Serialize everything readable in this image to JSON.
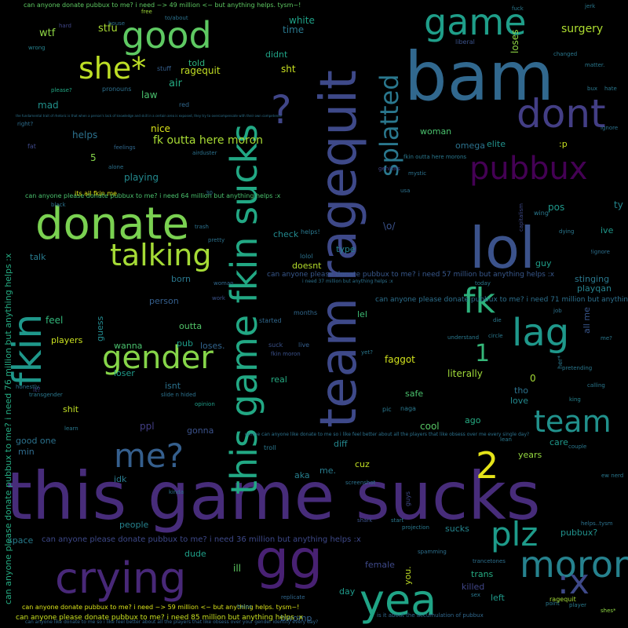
{
  "words": [
    {
      "id": "w1",
      "text": "this game sucks",
      "color": "#472c7a"
    },
    {
      "id": "w2",
      "text": "bam",
      "color": "#31688e"
    },
    {
      "id": "w3",
      "text": "lol",
      "color": "#3b528b"
    },
    {
      "id": "w4",
      "text": "donate",
      "color": "#7ad151"
    },
    {
      "id": "w5",
      "text": "team ragequit",
      "color": "#3e4989"
    },
    {
      "id": "w6",
      "text": "this game fkin sucks",
      "color": "#22a884"
    },
    {
      "id": "w7",
      "text": "good",
      "color": "#5ec962"
    },
    {
      "id": "w8",
      "text": "dont",
      "color": "#433e85"
    },
    {
      "id": "w9",
      "text": "game",
      "color": "#1f9e89"
    },
    {
      "id": "w10",
      "text": "pubbux",
      "color": "#440154"
    },
    {
      "id": "w11",
      "text": "talking",
      "color": "#a5db36"
    },
    {
      "id": "w12",
      "text": "gender",
      "color": "#86d549"
    },
    {
      "id": "w13",
      "text": "crying",
      "color": "#482878"
    },
    {
      "id": "w14",
      "text": "gg",
      "color": "#482173"
    },
    {
      "id": "w15",
      "text": "yea",
      "color": "#20a486"
    },
    {
      "id": "w16",
      "text": "moron",
      "color": "#26828e"
    },
    {
      "id": "w17",
      "text": "splatted",
      "color": "#2a788e"
    },
    {
      "id": "w18",
      "text": "fkin",
      "color": "#1f988b"
    },
    {
      "id": "w19",
      "text": "she*",
      "color": "#bddf26"
    },
    {
      "id": "w20",
      "text": "lag",
      "color": "#1f988b"
    },
    {
      "id": "w21",
      "text": "team",
      "color": "#21918c"
    },
    {
      "id": "w22",
      "text": "plz",
      "color": "#1e9b8a"
    },
    {
      "id": "w23",
      "text": "fk",
      "color": "#2db27d"
    },
    {
      "id": "w24",
      "text": "me?",
      "color": "#355f8d"
    },
    {
      "id": "w25",
      "text": "2",
      "color": "#e5e419"
    },
    {
      "id": "w26",
      "text": ":x",
      "color": "#3e4989"
    },
    {
      "id": "w27",
      "text": "?",
      "color": "#404688"
    },
    {
      "id": "w28",
      "text": "1",
      "color": "#35b779"
    },
    {
      "id": "w29",
      "text": "ragequit",
      "color": "#c2df23"
    },
    {
      "id": "w30",
      "text": "surgery",
      "color": "#addc30"
    },
    {
      "id": "w31",
      "text": "loses",
      "color": "#8fd744"
    },
    {
      "id": "w32",
      "text": "wtf",
      "color": "#8fd744"
    },
    {
      "id": "w33",
      "text": "stfu",
      "color": "#a8db34"
    },
    {
      "id": "w34",
      "text": "white",
      "color": "#1fa187"
    },
    {
      "id": "w35",
      "text": "time",
      "color": "#2a788e"
    },
    {
      "id": "w36",
      "text": "didnt",
      "color": "#20a386"
    },
    {
      "id": "w37",
      "text": "told",
      "color": "#2db27d"
    },
    {
      "id": "w38",
      "text": "air",
      "color": "#25ab82"
    },
    {
      "id": "w39",
      "text": "law",
      "color": "#4ac16d"
    },
    {
      "id": "w40",
      "text": "mad",
      "color": "#21918c"
    },
    {
      "id": "w41",
      "text": "sht",
      "color": "#c8e020"
    },
    {
      "id": "w42",
      "text": "nice",
      "color": "#dae319"
    },
    {
      "id": "w43",
      "text": "helps",
      "color": "#2c728e"
    },
    {
      "id": "w44",
      "text": "fk outta here moron",
      "color": "#a8db34"
    },
    {
      "id": "w45",
      "text": "woman",
      "color": "#4ac16d"
    },
    {
      "id": "w46",
      "text": "omega",
      "color": "#2c728e"
    },
    {
      "id": "w47",
      "text": "elite",
      "color": "#21918c"
    },
    {
      "id": "w48",
      "text": ":p",
      "color": "#c8e020"
    },
    {
      "id": "w49",
      "text": "playing",
      "color": "#23898e"
    },
    {
      "id": "w50",
      "text": "5",
      "color": "#84d44b"
    },
    {
      "id": "w51",
      "text": "check",
      "color": "#23898e"
    },
    {
      "id": "w52",
      "text": "\\o/",
      "color": "#3b528b"
    },
    {
      "id": "w53",
      "text": "pos",
      "color": "#1f988b"
    },
    {
      "id": "w54",
      "text": "ive",
      "color": "#1f988b"
    },
    {
      "id": "w55",
      "text": "ty",
      "color": "#24868e"
    },
    {
      "id": "w56",
      "text": "talk",
      "color": "#297b8e"
    },
    {
      "id": "w57",
      "text": "born",
      "color": "#2a788e"
    },
    {
      "id": "w58",
      "text": "doesnt",
      "color": "#b5de2b"
    },
    {
      "id": "w59",
      "text": "type",
      "color": "#25848e"
    },
    {
      "id": "w60",
      "text": "guy",
      "color": "#1f9e89"
    },
    {
      "id": "w61",
      "text": "stinging",
      "color": "#2a788e"
    },
    {
      "id": "w62",
      "text": "playqan",
      "color": "#26828e"
    },
    {
      "id": "w63",
      "text": "person",
      "color": "#355f8d"
    },
    {
      "id": "w64",
      "text": "feel",
      "color": "#32b67a"
    },
    {
      "id": "w65",
      "text": "outta",
      "color": "#52c569"
    },
    {
      "id": "w66",
      "text": "lel",
      "color": "#3dbc74"
    },
    {
      "id": "w67",
      "text": "players",
      "color": "#cae11f"
    },
    {
      "id": "w68",
      "text": "pub",
      "color": "#1e9c89"
    },
    {
      "id": "w69",
      "text": "loses.",
      "color": "#32648e"
    },
    {
      "id": "w70",
      "text": "wanna",
      "color": "#4ac16d"
    },
    {
      "id": "w71",
      "text": "loser",
      "color": "#1f9a8a"
    },
    {
      "id": "w72",
      "text": "isnt",
      "color": "#2c728e"
    },
    {
      "id": "w73",
      "text": "real",
      "color": "#25ab82"
    },
    {
      "id": "w74",
      "text": "faggot",
      "color": "#d0e11c"
    },
    {
      "id": "w75",
      "text": "literally",
      "color": "#a0da39"
    },
    {
      "id": "w76",
      "text": "tho",
      "color": "#2c728e"
    },
    {
      "id": "w77",
      "text": "love",
      "color": "#23898e"
    },
    {
      "id": "w78",
      "text": "safe",
      "color": "#4ac16d"
    },
    {
      "id": "w79",
      "text": "cool",
      "color": "#58c765"
    },
    {
      "id": "w80",
      "text": "ago",
      "color": "#25ab82"
    },
    {
      "id": "w81",
      "text": "care",
      "color": "#1f988b"
    },
    {
      "id": "w82",
      "text": "years",
      "color": "#95d840"
    },
    {
      "id": "w83",
      "text": "shit",
      "color": "#c0df25"
    },
    {
      "id": "w84",
      "text": "ppl",
      "color": "#433e85"
    },
    {
      "id": "w85",
      "text": "gonna",
      "color": "#3b528b"
    },
    {
      "id": "w86",
      "text": "good one",
      "color": "#2c728e"
    },
    {
      "id": "w87",
      "text": "min",
      "color": "#2f6c8e"
    },
    {
      "id": "w88",
      "text": "diff",
      "color": "#24878e"
    },
    {
      "id": "w89",
      "text": "aka",
      "color": "#277f8e"
    },
    {
      "id": "w90",
      "text": "me.",
      "color": "#287c8e"
    },
    {
      "id": "w91",
      "text": "cuz",
      "color": "#c2df23"
    },
    {
      "id": "w92",
      "text": "idk",
      "color": "#297b8e"
    },
    {
      "id": "w93",
      "text": "people",
      "color": "#26828e"
    },
    {
      "id": "w94",
      "text": "sucks",
      "color": "#25858e"
    },
    {
      "id": "w95",
      "text": "pubbux?",
      "color": "#21918c"
    },
    {
      "id": "w96",
      "text": "dude",
      "color": "#1fa088"
    },
    {
      "id": "w97",
      "text": "ill",
      "color": "#5ec962"
    },
    {
      "id": "w98",
      "text": "female",
      "color": "#3e4989"
    },
    {
      "id": "w99",
      "text": "trans",
      "color": "#25ab82"
    },
    {
      "id": "w100",
      "text": "killed",
      "color": "#404688"
    },
    {
      "id": "w101",
      "text": "day",
      "color": "#1f9a8a"
    },
    {
      "id": "w102",
      "text": "left",
      "color": "#1f9a8a"
    },
    {
      "id": "w103",
      "text": "bwomp",
      "color": "#34618d"
    },
    {
      "id": "w104",
      "text": "space",
      "color": "#287c8e"
    },
    {
      "id": "w105",
      "text": "you.",
      "color": "#c0df25"
    },
    {
      "id": "w106",
      "text": "can anyone please donate pubbux to me?  i need 36 million but anything helps :x",
      "color": "#3e4989"
    },
    {
      "id": "w107",
      "text": "can anyone please donate pubbux to me?  i need 76 million but anything helps :x",
      "color": "#25ab82"
    },
    {
      "id": "w108",
      "text": "can anyone please donate pubbux to me?  i need 71 million but anything helps :x",
      "color": "#2d708e"
    },
    {
      "id": "w109",
      "text": "can anyone please donate pubbux to me?  i need 57 million but anything helps :x",
      "color": "#38588c"
    },
    {
      "id": "w110",
      "text": "can anyone please donate pubbux to me?  i need 85 million but anything helps :x",
      "color": "#c8e020"
    },
    {
      "id": "w111",
      "text": "can anyone donate pubbux to me?  i need ~> 59 million <~ but anything helps.  tysm~!",
      "color": "#dae319"
    },
    {
      "id": "w112",
      "text": "can anyone donate pubbux to me?  i need ~> 49 million <~ but anything helps.  tysm~!",
      "color": "#5ec962"
    },
    {
      "id": "w113",
      "text": "can anyone please donate pubbux to me?  i need 64 million but anything helps :x",
      "color": "#4ac16d"
    },
    {
      "id": "w114",
      "text": "all me",
      "color": "#39568c"
    },
    {
      "id": "w115",
      "text": "guess",
      "color": "#23898e"
    },
    {
      "id": "w116",
      "text": "ragequit",
      "color": "#a5db36"
    },
    {
      "id": "w117",
      "text": "0",
      "color": "#a5db36"
    },
    {
      "id": "w118",
      "text": "pronouns",
      "color": "#2d708e"
    },
    {
      "id": "w119",
      "text": "stuff",
      "color": "#355f8d"
    },
    {
      "id": "w120",
      "text": "red",
      "color": "#31688e"
    },
    {
      "id": "w121",
      "text": "house",
      "color": "#2d708e"
    },
    {
      "id": "w122",
      "text": "to/about",
      "color": "#2c728e"
    },
    {
      "id": "w123",
      "text": "free",
      "color": "#a0da39"
    },
    {
      "id": "w124",
      "text": "fuck",
      "color": "#2a788e"
    },
    {
      "id": "w125",
      "text": "liberal",
      "color": "#3b528b"
    },
    {
      "id": "w126",
      "text": "hard",
      "color": "#404688"
    },
    {
      "id": "w127",
      "text": "wrong",
      "color": "#26828e"
    },
    {
      "id": "w128",
      "text": "please?",
      "color": "#22a884"
    },
    {
      "id": "w129",
      "text": "right?",
      "color": "#2e6e8e"
    },
    {
      "id": "w130",
      "text": "fat",
      "color": "#3e4989"
    },
    {
      "id": "w131",
      "text": "feelings",
      "color": "#31688e"
    },
    {
      "id": "w132",
      "text": "airduster",
      "color": "#2c728e"
    },
    {
      "id": "w133",
      "text": "opinion",
      "color": "#1f9e89"
    },
    {
      "id": "w134",
      "text": "me?",
      "color": "#2a788e"
    },
    {
      "id": "w135",
      "text": "job",
      "color": "#2c728e"
    },
    {
      "id": "w136",
      "text": "king",
      "color": "#26828e"
    },
    {
      "id": "w137",
      "text": "it?",
      "color": "#433e85"
    },
    {
      "id": "w138",
      "text": "slide n hided",
      "color": "#2c728e"
    },
    {
      "id": "w139",
      "text": "genitals",
      "color": "#414487"
    },
    {
      "id": "w140",
      "text": "helps..tysm",
      "color": "#2c728e"
    },
    {
      "id": "w141",
      "text": "shes*",
      "color": "#8fd744"
    },
    {
      "id": "w142",
      "text": "player",
      "color": "#297b8e"
    },
    {
      "id": "w143",
      "text": "point",
      "color": "#2a788e"
    },
    {
      "id": "w144",
      "text": "shark",
      "color": "#3b528b"
    },
    {
      "id": "w145",
      "text": "start",
      "color": "#2a788e"
    },
    {
      "id": "w146",
      "text": "projection",
      "color": "#2a788e"
    },
    {
      "id": "w147",
      "text": "guys",
      "color": "#3e4989"
    },
    {
      "id": "w148",
      "text": "trancetones",
      "color": "#2d708e"
    },
    {
      "id": "w149",
      "text": "spamming",
      "color": "#2d708e"
    },
    {
      "id": "w150",
      "text": "screenshot",
      "color": "#2c728e"
    },
    {
      "id": "w151",
      "text": "troll",
      "color": "#2a788e"
    },
    {
      "id": "w152",
      "text": "months",
      "color": "#31688e"
    },
    {
      "id": "w153",
      "text": "started",
      "color": "#31688e"
    },
    {
      "id": "w154",
      "text": "live",
      "color": "#355f8d"
    },
    {
      "id": "w155",
      "text": "suck",
      "color": "#3b528b"
    },
    {
      "id": "w156",
      "text": "fkin moron",
      "color": "#3b528b"
    },
    {
      "id": "w157",
      "text": "yet?",
      "color": "#2a788e"
    },
    {
      "id": "w158",
      "text": "pic",
      "color": "#2a788e"
    },
    {
      "id": "w159",
      "text": "naga",
      "color": "#2a788e"
    },
    {
      "id": "w160",
      "text": "lolol",
      "color": "#2c728e"
    },
    {
      "id": "w161",
      "text": "helps!",
      "color": "#2a788e"
    },
    {
      "id": "w162",
      "text": "replicate",
      "color": "#31688e"
    },
    {
      "id": "w163",
      "text": "helps",
      "color": "#2d708e"
    },
    {
      "id": "w164",
      "text": "dying",
      "color": "#2a788e"
    },
    {
      "id": "w165",
      "text": "!ignore",
      "color": "#2d708e"
    },
    {
      "id": "w166",
      "text": "wing",
      "color": "#2a788e"
    },
    {
      "id": "w167",
      "text": "capitalism",
      "color": "#3e4989"
    },
    {
      "id": "w168",
      "text": "her*",
      "color": "#2a788e"
    },
    {
      "id": "w169",
      "text": "jerk",
      "color": "#2a788e"
    },
    {
      "id": "w170",
      "text": "changed",
      "color": "#2a788e"
    },
    {
      "id": "w171",
      "text": "matter.",
      "color": "#2a788e"
    },
    {
      "id": "w172",
      "text": "bux",
      "color": "#2a788e"
    },
    {
      "id": "w173",
      "text": "hate",
      "color": "#2a788e"
    },
    {
      "id": "w174",
      "text": "ignore",
      "color": "#2c728e"
    },
    {
      "id": "w175",
      "text": "pretty",
      "color": "#2c728e"
    },
    {
      "id": "w176",
      "text": "woman",
      "color": "#31688e"
    },
    {
      "id": "w177",
      "text": "work",
      "color": "#3b528b"
    },
    {
      "id": "w178",
      "text": "circle",
      "color": "#2a788e"
    },
    {
      "id": "w179",
      "text": "understand",
      "color": "#2a788e"
    },
    {
      "id": "w180",
      "text": "lean",
      "color": "#2a788e"
    },
    {
      "id": "w181",
      "text": "calling",
      "color": "#2a788e"
    },
    {
      "id": "w182",
      "text": "pretending",
      "color": "#2a788e"
    },
    {
      "id": "w183",
      "text": "mystic",
      "color": "#2c728e"
    },
    {
      "id": "w184",
      "text": "usa",
      "color": "#2c728e"
    },
    {
      "id": "w185",
      "text": "black",
      "color": "#2c728e"
    },
    {
      "id": "w186",
      "text": "trash",
      "color": "#2c728e"
    },
    {
      "id": "w187",
      "text": "30",
      "color": "#2c728e"
    },
    {
      "id": "w188",
      "text": "alone",
      "color": "#2c728e"
    },
    {
      "id": "w189",
      "text": "kinda",
      "color": "#2c728e"
    },
    {
      "id": "w190",
      "text": "ew nerd",
      "color": "#2a788e"
    },
    {
      "id": "w191",
      "text": "couple",
      "color": "#2a788e"
    },
    {
      "id": "w192",
      "text": "sex",
      "color": "#2a788e"
    },
    {
      "id": "w193",
      "text": "die",
      "color": "#2a788e"
    },
    {
      "id": "w194",
      "text": "today",
      "color": "#2a788e"
    },
    {
      "id": "w195",
      "text": "fkin outta here morons",
      "color": "#2a788e"
    },
    {
      "id": "w196",
      "text": "i need 37 million but anything helps :x",
      "color": "#2c728e"
    },
    {
      "id": "w197",
      "text": "its all fkin me",
      "color": "#dae319"
    },
    {
      "id": "w198",
      "text": "honestly",
      "color": "#2c728e"
    },
    {
      "id": "w199",
      "text": "transgender",
      "color": "#2a788e"
    },
    {
      "id": "w200",
      "text": "learn",
      "color": "#2a788e"
    },
    {
      "id": "w201",
      "text": "umme can anyone like donate to me so i like feel better about all the players that like obsess over me every single day?",
      "color": "#2c728e"
    },
    {
      "id": "w202",
      "text": "can anyone like donate to me so i like feel better about all the players that like obsess over your gender identity every day?",
      "color": "#31688e"
    },
    {
      "id": "w203",
      "text": "is it about the accumulation of pubbux",
      "color": "#31688e"
    },
    {
      "id": "w204",
      "text": "the fundamental trait of rhetoric is that when a person's lack of knowledge and skill in a certain area is exposed, they try to overcompensate with their own competence",
      "color": "#2c728e"
    }
  ]
}
